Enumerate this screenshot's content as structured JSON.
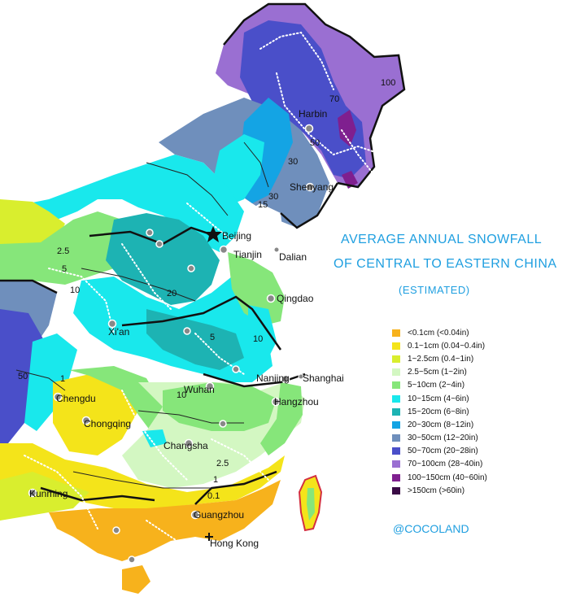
{
  "title": {
    "line1": "AVERAGE ANNUAL SNOWFALL",
    "line2": "OF CENTRAL TO EASTERN CHINA",
    "line3": "(ESTIMATED)"
  },
  "credit": "@COCOLAND",
  "legend": [
    {
      "label": "<0.1cm (<0.04in)",
      "color": "#f7b21c"
    },
    {
      "label": "0.1~1cm (0.04~0.4in)",
      "color": "#f4e41a"
    },
    {
      "label": "1~2.5cm (0.4~1in)",
      "color": "#d9ee2e"
    },
    {
      "label": "2.5~5cm (1~2in)",
      "color": "#d3f7c2"
    },
    {
      "label": "5~10cm (2~4in)",
      "color": "#86e67a"
    },
    {
      "label": "10~15cm (4~6in)",
      "color": "#19e8ec"
    },
    {
      "label": "15~20cm (6~8in)",
      "color": "#1db3b3"
    },
    {
      "label": "20~30cm (8~12in)",
      "color": "#14a4e4"
    },
    {
      "label": "30~50cm (12~20in)",
      "color": "#6f8fbc"
    },
    {
      "label": "50~70cm (20~28in)",
      "color": "#4a4fc9"
    },
    {
      "label": "70~100cm (28~40in)",
      "color": "#9a6fd2"
    },
    {
      "label": "100~150cm (40~60in)",
      "color": "#7f1f8f"
    },
    {
      "label": ">150cm (>60in)",
      "color": "#3a0a45"
    }
  ],
  "cities": {
    "harbin": "Harbin",
    "shenyang": "Shenyang",
    "beijing": "Beijing",
    "tianjin": "Tianjin",
    "dalian": "Dalian",
    "qingdao": "Qingdao",
    "xian": "Xi'an",
    "nanjing": "Nanjing",
    "shanghai": "Shanghai",
    "hangzhou": "Hangzhou",
    "wuhan": "Wuhan",
    "chengdu": "Chengdu",
    "chongqing": "Chongqing",
    "changsha": "Changsha",
    "kunming": "Kunming",
    "guangzhou": "Guangzhou",
    "hongkong": "Hong Kong"
  },
  "isolines": {
    "v100": "100",
    "v70": "70",
    "v50": "50",
    "v30a": "30",
    "v30b": "30",
    "v15": "15",
    "v2_5a": "2.5",
    "v5a": "5",
    "v10a": "10",
    "v20": "20",
    "v5b": "5",
    "v10b": "10",
    "v50w": "50",
    "v1a": "1",
    "v10c": "10",
    "v2_5b": "2.5",
    "v1b": "1",
    "v0_1": "0.1"
  }
}
